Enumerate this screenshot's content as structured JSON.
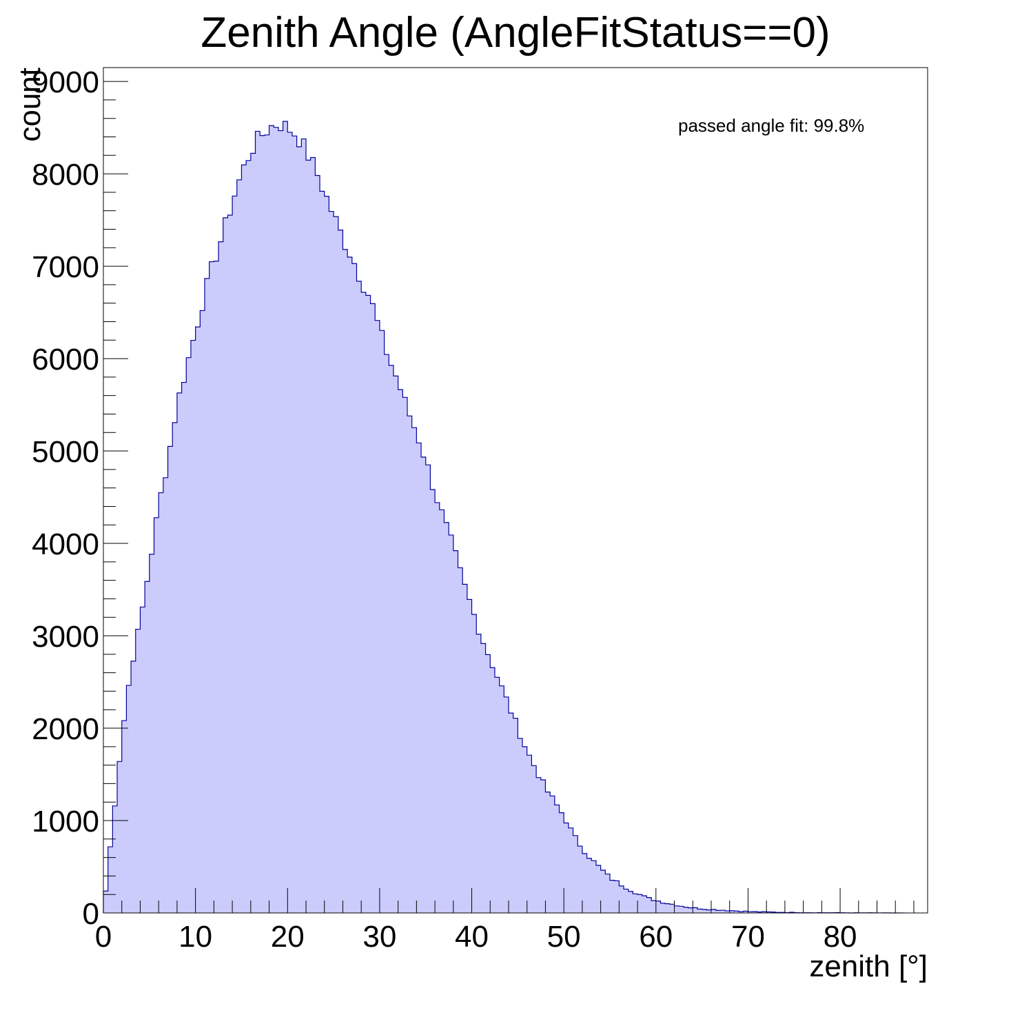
{
  "chart_data": {
    "type": "bar",
    "title": "Zenith Angle (AngleFitStatus==0)",
    "xlabel": "zenith [°]",
    "ylabel": "count",
    "xlim": [
      0,
      89.5
    ],
    "ylim": [
      0,
      9150
    ],
    "xticks": [
      "0",
      "10",
      "20",
      "30",
      "40",
      "50",
      "60",
      "70",
      "80"
    ],
    "yticks": [
      "0",
      "1000",
      "2000",
      "3000",
      "4000",
      "5000",
      "6000",
      "7000",
      "8000",
      "9000"
    ],
    "annotation": "passed angle fit: 99.8%",
    "grid": false,
    "legend": "none",
    "bin_width_deg": 0.5,
    "fill_color": "#ccccfc",
    "line_color": "#000099",
    "curve_points": {
      "x": [
        0,
        1,
        2,
        3,
        4,
        5,
        6,
        7,
        8,
        9,
        10,
        11,
        12,
        13,
        14,
        15,
        16,
        17,
        18,
        19,
        20,
        21,
        22,
        23,
        24,
        25,
        26,
        27,
        28,
        29,
        30,
        31,
        32,
        33,
        34,
        35,
        36,
        37,
        38,
        39,
        40,
        41,
        42,
        43,
        44,
        45,
        46,
        47,
        48,
        49,
        50,
        51,
        52,
        53,
        54,
        55,
        56,
        57,
        58,
        59,
        60,
        61,
        62,
        63,
        64,
        65,
        66,
        67,
        68,
        69,
        70,
        71,
        72,
        73,
        74,
        75,
        76,
        77,
        78,
        79,
        80,
        81,
        82,
        83,
        84,
        85,
        86,
        87
      ],
      "y": [
        0,
        950,
        1900,
        2650,
        3150,
        3750,
        4400,
        4900,
        5500,
        5900,
        6300,
        6700,
        7050,
        7350,
        7700,
        8000,
        8250,
        8400,
        8500,
        8550,
        8500,
        8420,
        8250,
        8050,
        7800,
        7550,
        7300,
        7100,
        6850,
        6650,
        6300,
        6000,
        5750,
        5450,
        5200,
        4900,
        4550,
        4250,
        3950,
        3600,
        3300,
        3000,
        2750,
        2500,
        2250,
        2000,
        1750,
        1550,
        1350,
        1200,
        1050,
        850,
        700,
        580,
        480,
        380,
        320,
        260,
        210,
        165,
        135,
        110,
        90,
        70,
        55,
        45,
        38,
        32,
        26,
        20,
        16,
        12,
        10,
        8,
        6,
        5,
        4,
        3,
        3,
        2,
        2,
        1,
        1,
        1,
        1,
        0,
        0,
        0
      ]
    }
  }
}
